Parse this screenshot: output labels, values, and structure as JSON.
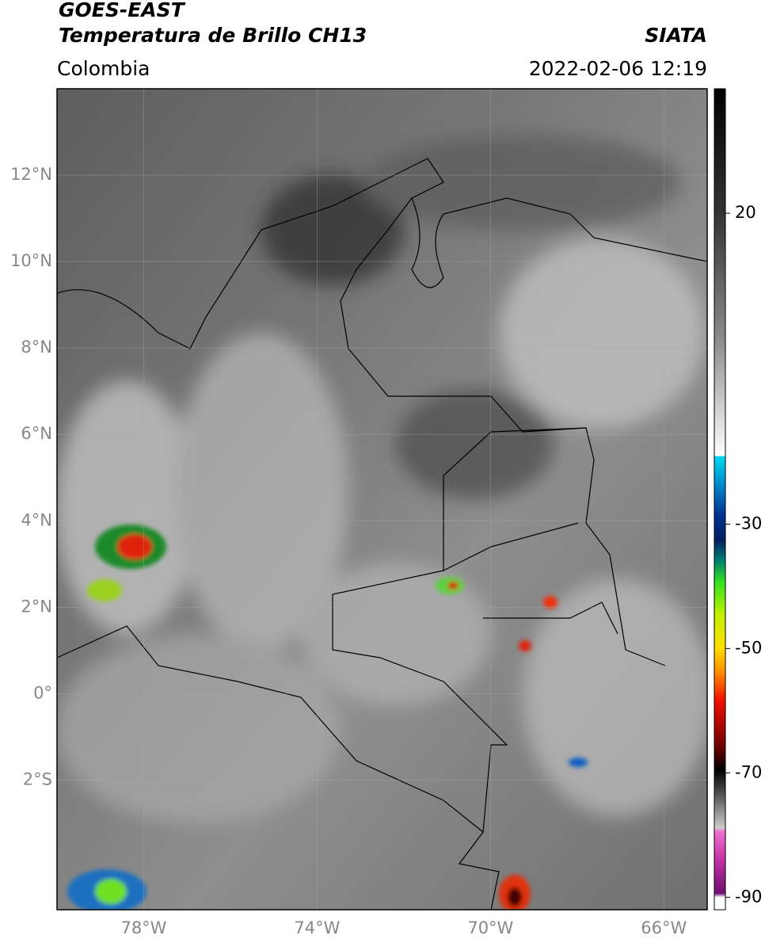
{
  "header": {
    "title": "GOES-EAST",
    "subtitle": "Temperatura de Brillo CH13",
    "region": "Colombia",
    "source": "SIATA",
    "datetime": "2022-02-06 12:19"
  },
  "map": {
    "lon_range": [
      -80,
      -65
    ],
    "lat_range": [
      -5,
      14
    ],
    "lat_ticks": [
      {
        "value": 12,
        "label": "12°N"
      },
      {
        "value": 10,
        "label": "10°N"
      },
      {
        "value": 8,
        "label": "8°N"
      },
      {
        "value": 6,
        "label": "6°N"
      },
      {
        "value": 4,
        "label": "4°N"
      },
      {
        "value": 2,
        "label": "2°N"
      },
      {
        "value": 0,
        "label": "0°"
      },
      {
        "value": -2,
        "label": "2°S"
      }
    ],
    "lon_ticks": [
      {
        "value": -78,
        "label": "78°W"
      },
      {
        "value": -74,
        "label": "74°W"
      },
      {
        "value": -70,
        "label": "70°W"
      },
      {
        "value": -66,
        "label": "66°W"
      }
    ]
  },
  "colorbar": {
    "range": [
      -92,
      40
    ],
    "ticks": [
      20,
      -30,
      -50,
      -70,
      -90
    ]
  }
}
